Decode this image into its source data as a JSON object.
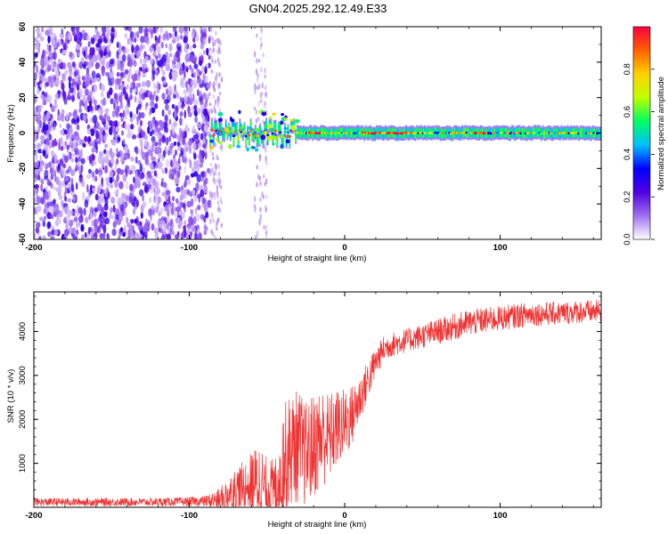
{
  "figure_title": "GN04.2025.292.12.49.E33",
  "chart_data": [
    {
      "type": "heatmap",
      "title": "GN04.2025.292.12.49.E33",
      "xlabel": "Height of straight line (km)",
      "ylabel": "Frequency (Hz)",
      "xlim": [
        -200,
        165
      ],
      "ylim": [
        -60,
        60
      ],
      "xticks": [
        -200,
        -100,
        0,
        100
      ],
      "yticks": [
        -60,
        -40,
        -20,
        0,
        20,
        40,
        60
      ],
      "colorbar": {
        "label": "Normalized spectral amplitude",
        "range": [
          0.0,
          1.0
        ],
        "ticks": [
          0.0,
          0.2,
          0.4,
          0.6,
          0.8
        ],
        "tick_labels": [
          "0.0",
          "0.2",
          "0.4",
          "0.6",
          "0.8"
        ],
        "colormap": [
          "#ffffff",
          "#a070f0",
          "#5000e0",
          "#0000ff",
          "#00c0ff",
          "#00ff60",
          "#c0ff00",
          "#ffd000",
          "#ff6000",
          "#ff0040"
        ]
      },
      "regions": [
        {
          "x_range": [
            -200,
            -87
          ],
          "description": "broadband noise",
          "amplitude_range": [
            0.05,
            0.25
          ]
        },
        {
          "x_range": [
            -87,
            -30
          ],
          "description": "emerging signal near 0 Hz with scattered noise",
          "amplitude_range": [
            0.2,
            0.95
          ]
        },
        {
          "x_range": [
            -30,
            165
          ],
          "description": "narrow signal band centered at 0 Hz",
          "center_hz": 0,
          "amplitude_range": [
            0.3,
            1.0
          ]
        }
      ]
    },
    {
      "type": "line",
      "xlabel": "Height of straight line (km)",
      "ylabel": "SNR (10 * v/v)",
      "xlim": [
        -200,
        165
      ],
      "ylim": [
        0,
        4900
      ],
      "xticks": [
        -200,
        -100,
        0,
        100
      ],
      "yticks": [
        1000,
        2000,
        3000,
        4000
      ],
      "series": [
        {
          "name": "SNR",
          "color": "#ee3333",
          "x": [
            -200,
            -175,
            -150,
            -125,
            -100,
            -90,
            -80,
            -75,
            -70,
            -65,
            -60,
            -55,
            -50,
            -45,
            -40,
            -35,
            -30,
            -25,
            -20,
            -15,
            -10,
            -5,
            0,
            5,
            10,
            15,
            20,
            25,
            30,
            40,
            50,
            60,
            70,
            80,
            90,
            100,
            110,
            120,
            130,
            140,
            150,
            160,
            165
          ],
          "values": [
            120,
            120,
            120,
            120,
            130,
            140,
            180,
            300,
            400,
            450,
            550,
            600,
            350,
            400,
            1000,
            1300,
            1400,
            1200,
            1400,
            1600,
            1600,
            1800,
            1900,
            2100,
            2500,
            2900,
            3300,
            3600,
            3700,
            3800,
            3900,
            4000,
            4100,
            4200,
            4250,
            4300,
            4350,
            4400,
            4400,
            4420,
            4450,
            4450,
            4460
          ],
          "noise_amplitude": [
            90,
            90,
            90,
            90,
            100,
            120,
            250,
            400,
            500,
            600,
            700,
            900,
            800,
            700,
            1300,
            1300,
            1300,
            1200,
            1200,
            1200,
            1000,
            900,
            800,
            700,
            550,
            450,
            350,
            300,
            280,
            270,
            280,
            290,
            300,
            300,
            290,
            280,
            280,
            270,
            270,
            260,
            260,
            260,
            260
          ]
        }
      ]
    }
  ]
}
